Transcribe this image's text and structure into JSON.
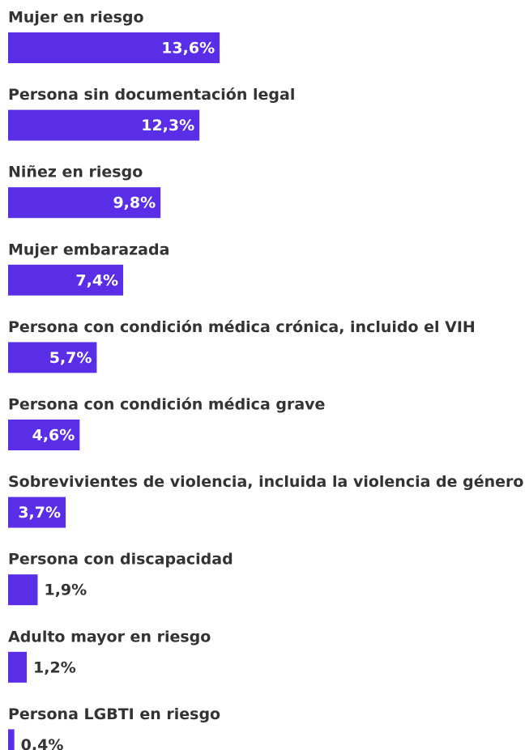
{
  "chart_data": {
    "type": "bar",
    "orientation": "horizontal",
    "categories": [
      "Mujer en riesgo",
      "Persona sin documentación legal",
      "Niñez en riesgo",
      "Mujer embarazada",
      "Persona con condición médica crónica, incluido el VIH",
      "Persona con condición médica grave",
      "Sobrevivientes de violencia, incluida la violencia de género",
      "Persona con discapacidad",
      "Adulto mayor en riesgo",
      "Persona LGBTI en riesgo"
    ],
    "values": [
      13.6,
      12.3,
      9.8,
      7.4,
      5.7,
      4.6,
      3.7,
      1.9,
      1.2,
      0.4
    ],
    "value_labels": [
      "13,6%",
      "12,3%",
      "9,8%",
      "7,4%",
      "5,7%",
      "4,6%",
      "3,7%",
      "1,9%",
      "1,2%",
      "0,4%"
    ],
    "color": "#5a2ee6"
  }
}
